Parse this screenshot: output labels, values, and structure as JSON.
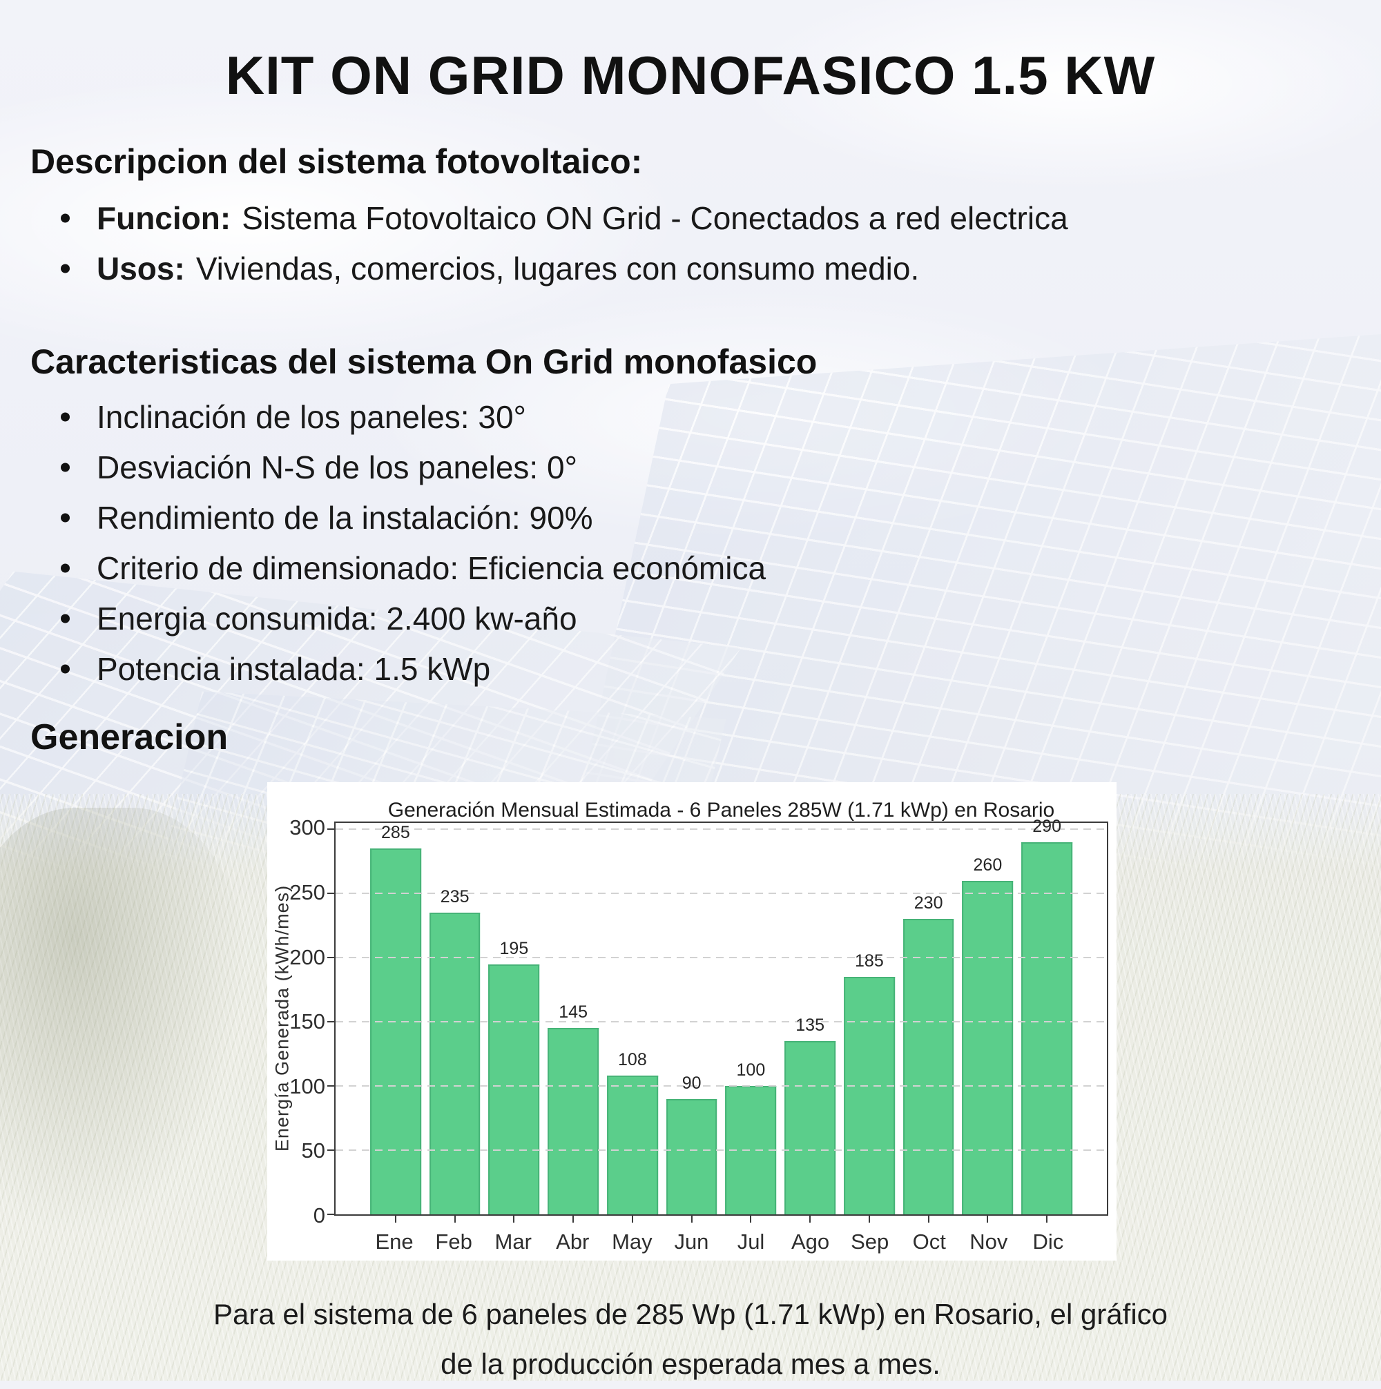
{
  "title": "KIT ON GRID MONOFASICO 1.5 KW",
  "description": {
    "heading": "Descripcion del sistema fotovoltaico:",
    "items": [
      {
        "label": "Funcion:",
        "text": "Sistema Fotovoltaico ON Grid - Conectados a red electrica"
      },
      {
        "label": "Usos:",
        "text": "Viviendas, comercios, lugares con consumo medio."
      }
    ]
  },
  "characteristics": {
    "heading": "Caracteristicas del sistema On Grid monofasico",
    "items": [
      "Inclinación de los paneles: 30°",
      "Desviación N-S de los paneles: 0°",
      "Rendimiento de la instalación: 90%",
      "Criterio de dimensionado: Eficiencia económica",
      "Energia consumida: 2.400 kw-año",
      "Potencia instalada: 1.5 kWp"
    ]
  },
  "generation_heading": "Generacion",
  "caption": {
    "line1": "Para el sistema de 6 paneles de 285 Wp (1.71 kWp) en Rosario,  el gráfico",
    "line2": "de la producción esperada mes a mes."
  },
  "chart_data": {
    "type": "bar",
    "title": "Generación Mensual Estimada - 6 Paneles 285W (1.71 kWp) en Rosario",
    "categories": [
      "Ene",
      "Feb",
      "Mar",
      "Abr",
      "May",
      "Jun",
      "Jul",
      "Ago",
      "Sep",
      "Oct",
      "Nov",
      "Dic"
    ],
    "values": [
      285,
      235,
      195,
      145,
      108,
      90,
      100,
      135,
      185,
      230,
      260,
      290
    ],
    "xlabel": "",
    "ylabel": "Energía Generada (kWh/mes)",
    "yticks": [
      0,
      50,
      100,
      150,
      200,
      250,
      300
    ],
    "ylim": [
      0,
      305
    ],
    "grid": true,
    "grid_style": "dashed",
    "legend_position": "none",
    "bar_color": "#5bce8b",
    "bar_edge_color": "#46b377"
  }
}
